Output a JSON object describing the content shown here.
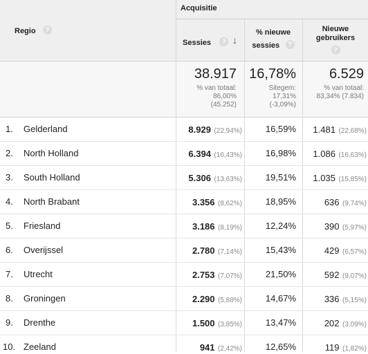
{
  "header": {
    "group_title": "Acquisitie",
    "region_label": "Regio",
    "col_sessions": "Sessies",
    "col_new_sessions_line1": "% nieuwe",
    "col_new_sessions_line2": "sessies",
    "col_new_users_line1": "Nieuwe",
    "col_new_users_line2": "gebruikers",
    "help_glyph": "?",
    "sort_glyph": "↓"
  },
  "totals": {
    "sessions": "38.917",
    "sessions_note1": "% van totaal:",
    "sessions_note2": "86,00%",
    "sessions_note3": "(45.252)",
    "new_sessions": "16,78%",
    "new_sessions_note1": "Sitegem:",
    "new_sessions_note2": "17,31%",
    "new_sessions_note3": "(-3,09%)",
    "new_users": "6.529",
    "new_users_note1": "% van totaal:",
    "new_users_note2": "83,34% (7.834)"
  },
  "rows": [
    {
      "num": "1.",
      "region": "Gelderland",
      "sessions": "8.929",
      "sessions_pct": "(22,94%)",
      "new_sessions": "16,59%",
      "new_users": "1.481",
      "new_users_pct": "(22,68%)"
    },
    {
      "num": "2.",
      "region": "North Holland",
      "sessions": "6.394",
      "sessions_pct": "(16,43%)",
      "new_sessions": "16,98%",
      "new_users": "1.086",
      "new_users_pct": "(16,63%)"
    },
    {
      "num": "3.",
      "region": "South Holland",
      "sessions": "5.306",
      "sessions_pct": "(13,63%)",
      "new_sessions": "19,51%",
      "new_users": "1.035",
      "new_users_pct": "(15,85%)"
    },
    {
      "num": "4.",
      "region": "North Brabant",
      "sessions": "3.356",
      "sessions_pct": "(8,62%)",
      "new_sessions": "18,95%",
      "new_users": "636",
      "new_users_pct": "(9,74%)"
    },
    {
      "num": "5.",
      "region": "Friesland",
      "sessions": "3.186",
      "sessions_pct": "(8,19%)",
      "new_sessions": "12,24%",
      "new_users": "390",
      "new_users_pct": "(5,97%)"
    },
    {
      "num": "6.",
      "region": "Overijssel",
      "sessions": "2.780",
      "sessions_pct": "(7,14%)",
      "new_sessions": "15,43%",
      "new_users": "429",
      "new_users_pct": "(6,57%)"
    },
    {
      "num": "7.",
      "region": "Utrecht",
      "sessions": "2.753",
      "sessions_pct": "(7,07%)",
      "new_sessions": "21,50%",
      "new_users": "592",
      "new_users_pct": "(9,07%)"
    },
    {
      "num": "8.",
      "region": "Groningen",
      "sessions": "2.290",
      "sessions_pct": "(5,88%)",
      "new_sessions": "14,67%",
      "new_users": "336",
      "new_users_pct": "(5,15%)"
    },
    {
      "num": "9.",
      "region": "Drenthe",
      "sessions": "1.500",
      "sessions_pct": "(3,85%)",
      "new_sessions": "13,47%",
      "new_users": "202",
      "new_users_pct": "(3,09%)"
    },
    {
      "num": "10.",
      "region": "Zeeland",
      "sessions": "941",
      "sessions_pct": "(2,42%)",
      "new_sessions": "12,65%",
      "new_users": "119",
      "new_users_pct": "(1,82%)"
    }
  ]
}
